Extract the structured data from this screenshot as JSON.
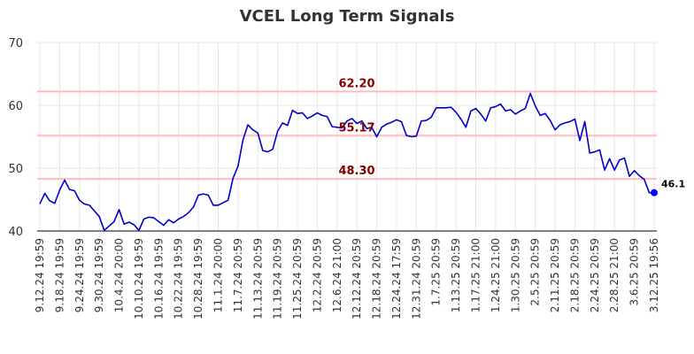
{
  "chart_data": {
    "type": "line",
    "title": "VCEL Long Term Signals",
    "xlabel": "",
    "ylabel": "",
    "ylim": [
      40,
      70
    ],
    "yticks": [
      40,
      50,
      60,
      70
    ],
    "grid": true,
    "legend": "none",
    "x_tick_labels": [
      "9.12.24 19:59",
      "9.18.24 19:59",
      "9.24.24 19:59",
      "9.30.24 19:59",
      "10.4.24 20:00",
      "10.10.24 19:59",
      "10.16.24 19:59",
      "10.22.24 19:59",
      "10.28.24 19:59",
      "11.1.24 20:00",
      "11.7.24 20:59",
      "11.13.24 20:59",
      "11.19.24 20:59",
      "11.25.24 20:59",
      "12.2.24 20:59",
      "12.6.24 21:00",
      "12.12.24 20:59",
      "12.18.24 20:59",
      "12.24.24 17:59",
      "12.31.24 20:59",
      "1.7.25 20:59",
      "1.13.25 20:59",
      "1.17.25 21:00",
      "1.24.25 21:00",
      "1.30.25 20:59",
      "2.5.25 20:59",
      "2.11.25 20:59",
      "2.18.25 20:59",
      "2.24.25 20:59",
      "2.28.25 21:00",
      "3.6.25 20:59",
      "3.12.25 19:56"
    ],
    "series": [
      {
        "values": [
          44.3,
          46.0,
          44.8,
          44.4,
          46.5,
          48.1,
          46.6,
          46.4,
          44.9,
          44.3,
          44.1,
          43.2,
          42.3,
          40.1,
          40.8,
          41.5,
          43.4,
          41.1,
          41.4,
          41.0,
          40.1,
          41.9,
          42.2,
          42.1,
          41.5,
          40.9,
          41.8,
          41.3,
          41.9,
          42.3,
          42.9,
          43.8,
          45.7,
          45.9,
          45.7,
          44.1,
          44.1,
          44.5,
          44.9,
          48.4,
          50.3,
          54.5,
          56.9,
          56.1,
          55.6,
          52.8,
          52.6,
          53.0,
          55.9,
          57.2,
          56.8,
          59.2,
          58.7,
          58.8,
          57.9,
          58.3,
          58.8,
          58.4,
          58.2,
          56.6,
          56.5,
          56.4,
          57.5,
          57.9,
          57.1,
          57.5,
          56.3,
          56.5,
          55.0,
          56.5,
          57.0,
          57.3,
          57.7,
          57.4,
          55.2,
          55.0,
          55.1,
          57.5,
          57.6,
          58.1,
          59.6,
          59.6,
          59.6,
          59.7,
          58.9,
          57.8,
          56.5,
          59.1,
          59.5,
          58.6,
          57.5,
          59.6,
          59.8,
          60.2,
          59.1,
          59.3,
          58.6,
          59.1,
          59.5,
          61.9,
          59.9,
          58.4,
          58.7,
          57.6,
          56.1,
          56.9,
          57.2,
          57.4,
          57.8,
          54.4,
          57.4,
          52.4,
          52.6,
          52.9,
          49.7,
          51.5,
          49.7,
          51.3,
          51.6,
          48.7,
          49.6,
          48.8,
          48.2,
          46.1,
          46.1
        ]
      }
    ],
    "levels": [
      {
        "value": 62.2,
        "label": "62.20"
      },
      {
        "value": 55.17,
        "label": "55.17"
      },
      {
        "value": 48.3,
        "label": "48.30"
      }
    ],
    "last_value_label": "46.1",
    "colors": {
      "line": "#0000cc",
      "level": "#ffbbbb",
      "level_label": "#880000",
      "grid": "#e6e6e6",
      "marker": "#0000ff"
    }
  }
}
